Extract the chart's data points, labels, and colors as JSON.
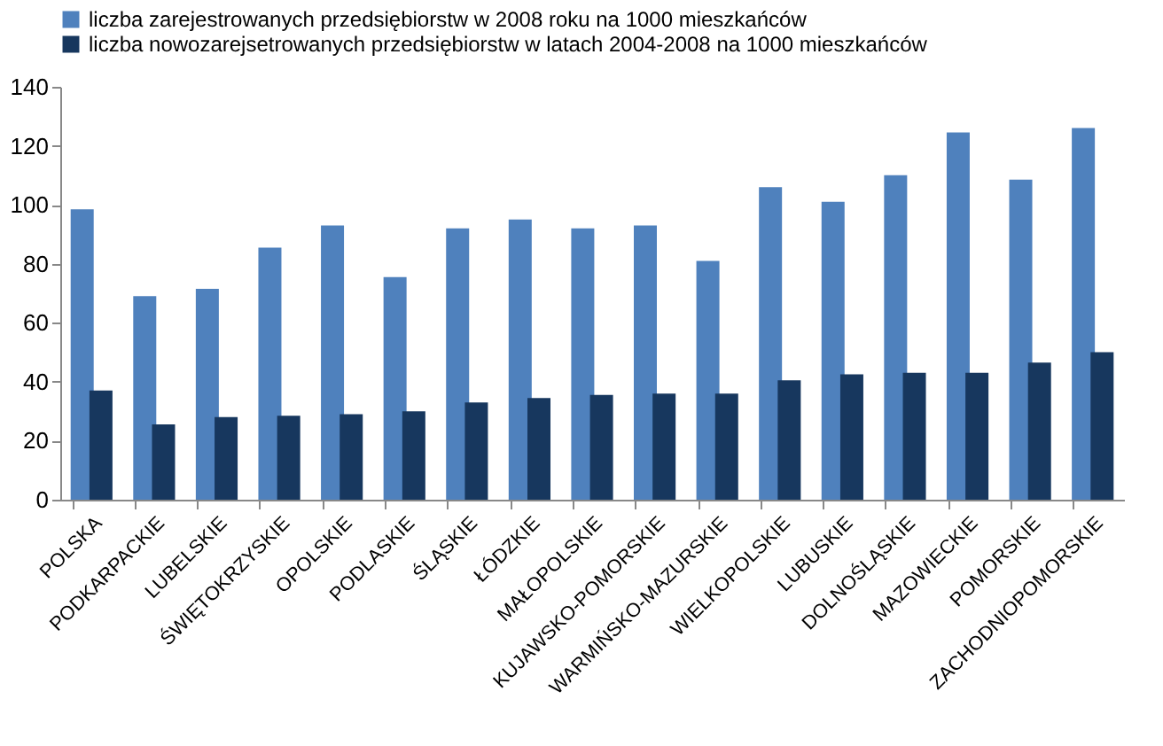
{
  "chart_data": {
    "type": "bar",
    "categories": [
      "POLSKA",
      "PODKARPACKIE",
      "LUBELSKIE",
      "ŚWIĘTOKRZYSKIE",
      "OPOLSKIE",
      "PODLASKIE",
      "ŚLĄSKIE",
      "ŁÓDZKIE",
      "MAŁOPOLSKIE",
      "KUJAWSKO-POMORSKIE",
      "WARMIŃSKO-MAZURSKIE",
      "WIELKOPOLSKIE",
      "LUBUSKIE",
      "DOLNOŚLĄSKIE",
      "MAZOWIECKIE",
      "POMORSKIE",
      "ZACHODNIOPOMORSKIE"
    ],
    "series": [
      {
        "name": "liczba zarejestrowanych przedsiębiorstw w 2008 roku na 1000 mieszkańców",
        "color": "#4f81bd",
        "values": [
          98.5,
          69,
          71.5,
          85.5,
          93,
          75.5,
          92,
          95,
          92,
          93,
          81,
          106,
          101,
          110,
          124.5,
          108.5,
          126
        ]
      },
      {
        "name": "liczba nowozarejsetrowanych przedsiębiorstw  w latach 2004-2008 na 1000 mieszkańców",
        "color": "#17375e",
        "values": [
          37,
          25.5,
          28,
          28.5,
          29,
          30,
          33,
          34.5,
          35.5,
          36,
          36,
          40.5,
          42.5,
          43,
          43,
          46.5,
          50
        ]
      }
    ],
    "ylim": [
      0,
      140
    ],
    "yticks": [
      0,
      20,
      40,
      60,
      80,
      100,
      120,
      140
    ],
    "grid": false,
    "legend": "top"
  }
}
